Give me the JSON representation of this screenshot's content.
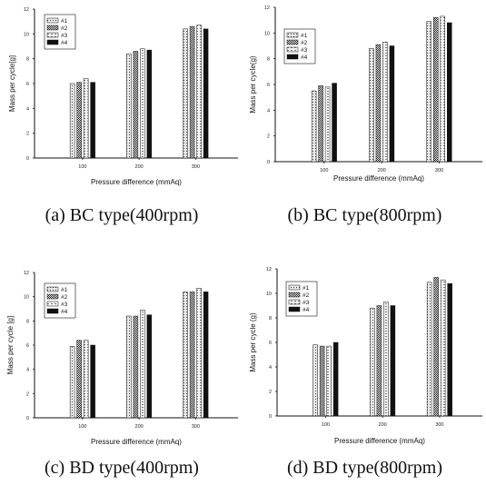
{
  "chart_data": [
    {
      "type": "bar",
      "caption": "(a) BC type(400rpm)",
      "xlabel": "Pressure difference (mmAq)",
      "ylabel": "Mass per cycle[g]",
      "categories": [
        "100",
        "200",
        "300"
      ],
      "ylim": [
        0,
        12
      ],
      "yticks": [
        "0",
        "2",
        "4",
        "6",
        "8",
        "10",
        "12"
      ],
      "legend_position": "top-left",
      "series": [
        {
          "name": "#1",
          "values": [
            6.0,
            8.4,
            10.4
          ]
        },
        {
          "name": "#2",
          "values": [
            6.1,
            8.6,
            10.6
          ]
        },
        {
          "name": "#3",
          "values": [
            6.4,
            8.8,
            10.7
          ]
        },
        {
          "name": "#4",
          "values": [
            6.1,
            8.7,
            10.4
          ]
        }
      ]
    },
    {
      "type": "bar",
      "caption": "(b) BC type(800rpm)",
      "xlabel": "Pressure difference (mmAq)",
      "ylabel": "Mass per cycle(g)",
      "categories": [
        "100",
        "200",
        "300"
      ],
      "ylim": [
        0,
        12
      ],
      "yticks": [
        "0",
        "2",
        "4",
        "6",
        "8",
        "10",
        "12"
      ],
      "legend_position": "top-left",
      "series": [
        {
          "name": "#1",
          "values": [
            5.5,
            8.8,
            10.9
          ]
        },
        {
          "name": "#2",
          "values": [
            5.9,
            9.1,
            11.2
          ]
        },
        {
          "name": "#3",
          "values": [
            5.8,
            9.3,
            11.3
          ]
        },
        {
          "name": "#4",
          "values": [
            6.1,
            9.0,
            10.8
          ]
        }
      ]
    },
    {
      "type": "bar",
      "caption": "(c) BD type(400rpm)",
      "xlabel": "Pressure difference (mmAq)",
      "ylabel": "Mass per cycle [g]",
      "categories": [
        "100",
        "200",
        "300"
      ],
      "ylim": [
        0,
        12
      ],
      "yticks": [
        "0",
        "2",
        "4",
        "6",
        "8",
        "10",
        "12"
      ],
      "legend_position": "top-left",
      "series": [
        {
          "name": "#1",
          "values": [
            5.9,
            8.4,
            10.4
          ]
        },
        {
          "name": "#2",
          "values": [
            6.4,
            8.4,
            10.4
          ]
        },
        {
          "name": "#3",
          "values": [
            6.4,
            8.9,
            10.7
          ]
        },
        {
          "name": "#4",
          "values": [
            6.0,
            8.5,
            10.4
          ]
        }
      ]
    },
    {
      "type": "bar",
      "caption": "(d) BD type(800rpm)",
      "xlabel": "Pressure difference (mmAq)",
      "ylabel": "Mass per cycle (g)",
      "categories": [
        "100",
        "200",
        "300"
      ],
      "ylim": [
        0,
        12
      ],
      "yticks": [
        "0",
        "2",
        "4",
        "6",
        "8",
        "10",
        "12"
      ],
      "legend_position": "top-left",
      "series": [
        {
          "name": "#1",
          "values": [
            5.8,
            8.8,
            10.9
          ]
        },
        {
          "name": "#2",
          "values": [
            5.7,
            9.0,
            11.3
          ]
        },
        {
          "name": "#3",
          "values": [
            5.7,
            9.3,
            11.1
          ]
        },
        {
          "name": "#4",
          "values": [
            6.0,
            9.0,
            10.8
          ]
        }
      ]
    }
  ],
  "colors": {
    "axis": "#111111",
    "bar_fill_1": "#e8e8e8",
    "bar_fill_2": "#b0b0b0",
    "bar_fill_3": "#f4f4f4",
    "bar_fill_4": "#111111"
  }
}
